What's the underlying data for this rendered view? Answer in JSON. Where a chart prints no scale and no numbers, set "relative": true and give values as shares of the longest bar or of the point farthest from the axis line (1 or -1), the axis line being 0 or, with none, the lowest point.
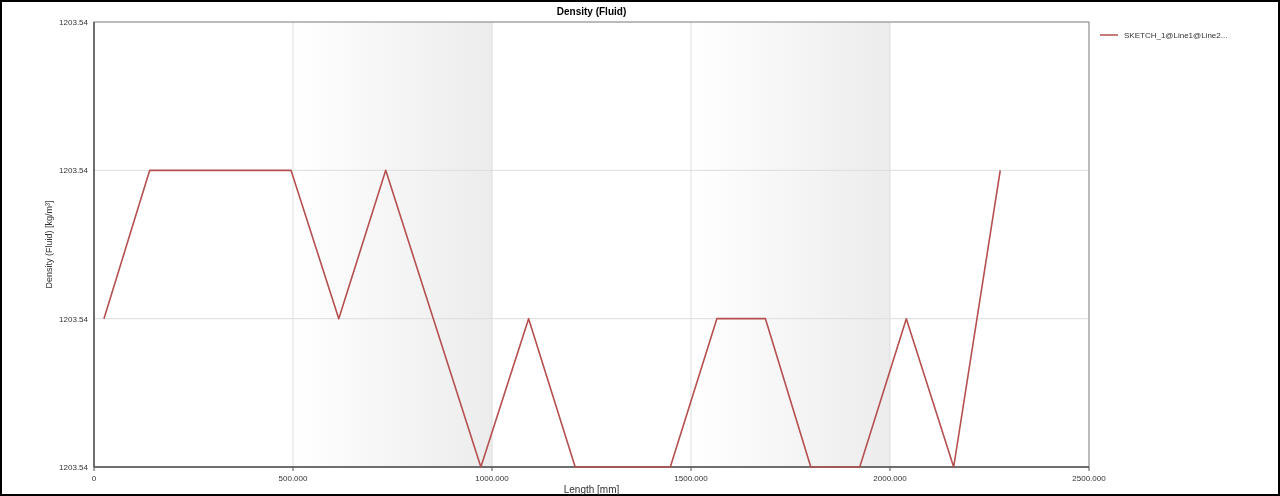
{
  "chart_data": {
    "type": "line",
    "title": "Density (Fluid)",
    "xlabel": "Length [mm]",
    "ylabel": "Density (Fluid) [kg/m³]",
    "relative": true,
    "annotations": [
      "1203.54",
      "1203.54",
      "1203.54",
      "1203.54"
    ],
    "x": [
      25,
      140,
      260,
      380,
      495,
      615,
      733,
      972,
      1092,
      1209,
      1448,
      1565,
      1687,
      1801,
      1924,
      2041,
      2160,
      2277
    ],
    "xlim": [
      0,
      2500
    ],
    "xticks": [
      0,
      {
        "value": 500,
        "label": "500.000"
      },
      {
        "value": 1000,
        "label": "1000.000"
      },
      {
        "value": 1500,
        "label": "1500.000"
      },
      {
        "value": 2000,
        "label": "2000.000"
      },
      {
        "value": 2500,
        "label": "2500.000"
      }
    ],
    "series": [
      {
        "name": "SKETCH_1@Line1@Line2...",
        "color": "#b5504f",
        "values": [
          0.5,
          1,
          1,
          1,
          1,
          0.5,
          1,
          0,
          0.5,
          0,
          0,
          0.5,
          0.5,
          0,
          0,
          0.5,
          0,
          1
        ]
      }
    ],
    "bands": [
      {
        "axis": "x",
        "from": 500,
        "to": 1000,
        "color": "#ececec"
      },
      {
        "axis": "x",
        "from": 1500,
        "to": 2000,
        "color": "#ececec"
      }
    ],
    "grid": true,
    "legend": "top right",
    "marker": "none",
    "line_style": "solid"
  }
}
